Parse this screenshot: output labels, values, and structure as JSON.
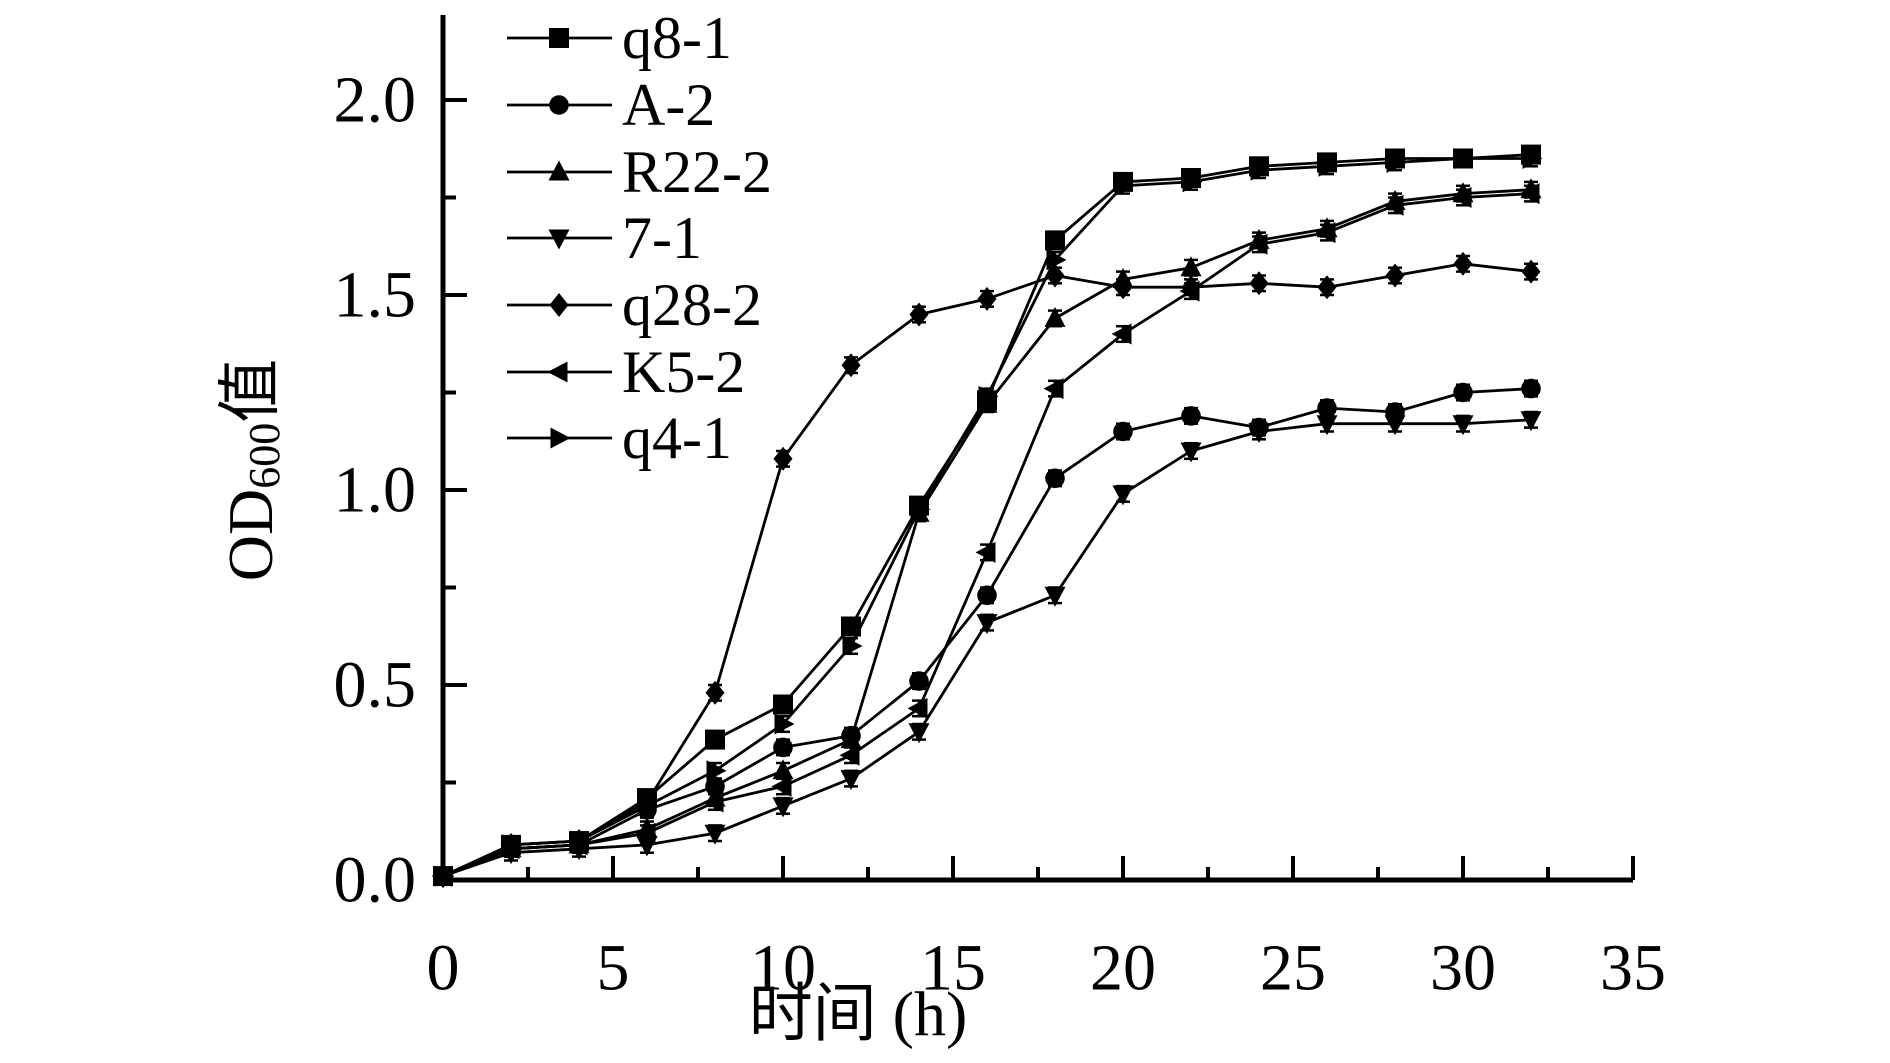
{
  "figure": {
    "background": "#ffffff",
    "ink_color": "#000000"
  },
  "chart_data": {
    "type": "line",
    "title": "",
    "xlabel": "时间 (h)",
    "ylabel_prefix": "OD",
    "ylabel_sub": "600",
    "ylabel_suffix": "值",
    "xlim": [
      0,
      35
    ],
    "ylim": [
      0.0,
      2.2
    ],
    "x_major_ticks": [
      0,
      5,
      10,
      15,
      20,
      25,
      30,
      35
    ],
    "x_tick_labels": [
      "0",
      "5",
      "10",
      "15",
      "20",
      "25",
      "30",
      "35"
    ],
    "x_minor_ticks": [
      2.5,
      7.5,
      12.5,
      17.5,
      22.5,
      27.5,
      32.5
    ],
    "y_major_ticks": [
      0.0,
      0.5,
      1.0,
      1.5,
      2.0
    ],
    "y_tick_labels": [
      "0.0",
      "0.5",
      "1.0",
      "1.5",
      "2.0"
    ],
    "y_minor_ticks": [
      0.25,
      0.75,
      1.25,
      1.75
    ],
    "grid": false,
    "legend_position": "upper-left-inside",
    "error_bar_od": 0.02,
    "x": [
      0,
      2,
      4,
      6,
      8,
      10,
      12,
      14,
      16,
      18,
      20,
      22,
      24,
      26,
      28,
      30,
      32
    ],
    "series": [
      {
        "name": "q8-1",
        "marker": "square",
        "values": [
          0.01,
          0.09,
          0.1,
          0.21,
          0.36,
          0.45,
          0.65,
          0.96,
          1.23,
          1.64,
          1.79,
          1.8,
          1.83,
          1.84,
          1.85,
          1.85,
          1.86
        ]
      },
      {
        "name": "A-2",
        "marker": "circle",
        "values": [
          0.01,
          0.08,
          0.09,
          0.18,
          0.24,
          0.34,
          0.37,
          0.51,
          0.73,
          1.03,
          1.15,
          1.19,
          1.16,
          1.21,
          1.2,
          1.25,
          1.26
        ]
      },
      {
        "name": "R22-2",
        "marker": "triangle-up",
        "values": [
          0.01,
          0.08,
          0.09,
          0.13,
          0.21,
          0.28,
          0.36,
          0.94,
          1.22,
          1.44,
          1.54,
          1.57,
          1.64,
          1.67,
          1.74,
          1.76,
          1.77
        ]
      },
      {
        "name": "7-1",
        "marker": "triangle-down",
        "values": [
          0.01,
          0.07,
          0.08,
          0.09,
          0.12,
          0.19,
          0.26,
          0.38,
          0.66,
          0.73,
          0.99,
          1.1,
          1.15,
          1.17,
          1.17,
          1.17,
          1.18
        ]
      },
      {
        "name": "q28-2",
        "marker": "diamond",
        "values": [
          0.01,
          0.09,
          0.1,
          0.2,
          0.48,
          1.08,
          1.32,
          1.45,
          1.49,
          1.55,
          1.52,
          1.52,
          1.53,
          1.52,
          1.55,
          1.58,
          1.56
        ]
      },
      {
        "name": "K5-2",
        "marker": "triangle-left",
        "values": [
          0.01,
          0.08,
          0.09,
          0.12,
          0.2,
          0.24,
          0.32,
          0.44,
          0.84,
          1.26,
          1.4,
          1.51,
          1.63,
          1.66,
          1.73,
          1.75,
          1.76
        ]
      },
      {
        "name": "q4-1",
        "marker": "triangle-right",
        "values": [
          0.01,
          0.09,
          0.1,
          0.19,
          0.28,
          0.4,
          0.6,
          0.95,
          1.24,
          1.59,
          1.78,
          1.79,
          1.82,
          1.83,
          1.84,
          1.85,
          1.85
        ]
      }
    ]
  }
}
